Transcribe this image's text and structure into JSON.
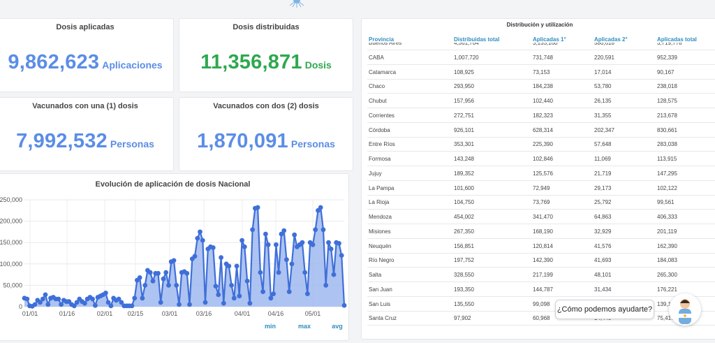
{
  "cards": {
    "aplicadas": {
      "title": "Dosis aplicadas",
      "value": "9,862,623",
      "unit": "Aplicaciones"
    },
    "distribuidas": {
      "title": "Dosis distribuidas",
      "value": "11,356,871",
      "unit": "Dosis"
    },
    "una_dosis": {
      "title": "Vacunados con una (1) dosis",
      "value": "7,992,532",
      "unit": "Personas"
    },
    "dos_dosis": {
      "title": "Vacunados con dos (2) dosis",
      "value": "1,870,091",
      "unit": "Personas"
    }
  },
  "colors": {
    "blue": "#5b8de6",
    "green": "#2ea84f",
    "link": "#2f8dbf",
    "line": "#3f6fd8",
    "area": "#9fb8ee"
  },
  "table": {
    "title": "Distribución y utilización",
    "headers": [
      "Provincia",
      "Distribuidas total",
      "Aplicadas 1°",
      "Aplicadas 2°",
      "Aplicadas total"
    ],
    "rows": [
      [
        "Buenos Aires",
        "4,361,704",
        "3,133,160",
        "586,618",
        "3,719,778"
      ],
      [
        "CABA",
        "1,007,720",
        "731,748",
        "220,591",
        "952,339"
      ],
      [
        "Catamarca",
        "108,925",
        "73,153",
        "17,014",
        "90,167"
      ],
      [
        "Chaco",
        "293,950",
        "184,238",
        "53,780",
        "238,018"
      ],
      [
        "Chubut",
        "157,956",
        "102,440",
        "26,135",
        "128,575"
      ],
      [
        "Corrientes",
        "272,751",
        "182,323",
        "31,355",
        "213,678"
      ],
      [
        "Córdoba",
        "926,101",
        "628,314",
        "202,347",
        "830,661"
      ],
      [
        "Entre Ríos",
        "353,301",
        "225,390",
        "57,648",
        "283,038"
      ],
      [
        "Formosa",
        "143,248",
        "102,846",
        "11,069",
        "113,915"
      ],
      [
        "Jujuy",
        "189,352",
        "125,576",
        "21,719",
        "147,295"
      ],
      [
        "La Pampa",
        "101,600",
        "72,949",
        "29,173",
        "102,122"
      ],
      [
        "La Rioja",
        "104,750",
        "73,769",
        "25,792",
        "99,561"
      ],
      [
        "Mendoza",
        "454,002",
        "341,470",
        "64,863",
        "406,333"
      ],
      [
        "Misiones",
        "267,350",
        "168,190",
        "32,929",
        "201,119"
      ],
      [
        "Neuquén",
        "156,851",
        "120,814",
        "41,576",
        "162,390"
      ],
      [
        "Río Negro",
        "197,752",
        "142,390",
        "41,693",
        "184,083"
      ],
      [
        "Salta",
        "328,550",
        "217,199",
        "48,101",
        "265,300"
      ],
      [
        "San Juan",
        "193,350",
        "144,787",
        "31,434",
        "176,221"
      ],
      [
        "San Luis",
        "135,550",
        "99,098",
        "",
        "139,1"
      ],
      [
        "Santa Cruz",
        "97,902",
        "60,968",
        "14,449",
        "75,417"
      ]
    ]
  },
  "help": {
    "label": "¿Cómo podemos ayudarte?"
  },
  "chart_data": {
    "type": "area",
    "title": "Evolución de aplicación de dosis Nacional",
    "ylim": [
      0,
      250000
    ],
    "y_ticks": [
      "250,000",
      "200,000",
      "150,000",
      "100,000",
      "50,000",
      "0"
    ],
    "x_ticks": [
      "01/01",
      "01/16",
      "02/01",
      "02/15",
      "03/01",
      "03/16",
      "04/01",
      "04/16",
      "05/01"
    ],
    "stat_labels": [
      "min",
      "max",
      "avg"
    ],
    "grid": true,
    "series": [
      {
        "values": [
          20000,
          18000,
          2000,
          1000,
          5000,
          15000,
          10000,
          18000,
          28000,
          5000,
          20000,
          22000,
          18000,
          18000,
          5000,
          15000,
          12000,
          12000,
          5000,
          2000,
          10000,
          18000,
          12000,
          8000,
          18000,
          22000,
          18000,
          3000,
          22000,
          25000,
          28000,
          32000,
          10000,
          2000,
          20000,
          15000,
          18000,
          10000,
          2000,
          2000,
          2000,
          2000,
          20000,
          62000,
          68000,
          20000,
          50000,
          85000,
          80000,
          60000,
          78000,
          78000,
          10000,
          65000,
          80000,
          50000,
          105000,
          108000,
          50000,
          5000,
          80000,
          82000,
          78000,
          5000,
          112000,
          118000,
          160000,
          175000,
          155000,
          10000,
          135000,
          140000,
          138000,
          48000,
          28000,
          115000,
          8000,
          100000,
          95000,
          50000,
          20000,
          95000,
          25000,
          155000,
          140000,
          60000,
          8000,
          180000,
          230000,
          232000,
          80000,
          35000,
          170000,
          145000,
          20000,
          30000,
          145000,
          80000,
          170000,
          178000,
          110000,
          35000,
          100000,
          168000,
          140000,
          145000,
          150000,
          80000,
          30000,
          150000,
          145000,
          180000,
          225000,
          232000,
          180000,
          50000,
          150000,
          135000,
          75000,
          150000,
          148000,
          120000,
          3000
        ]
      }
    ]
  }
}
